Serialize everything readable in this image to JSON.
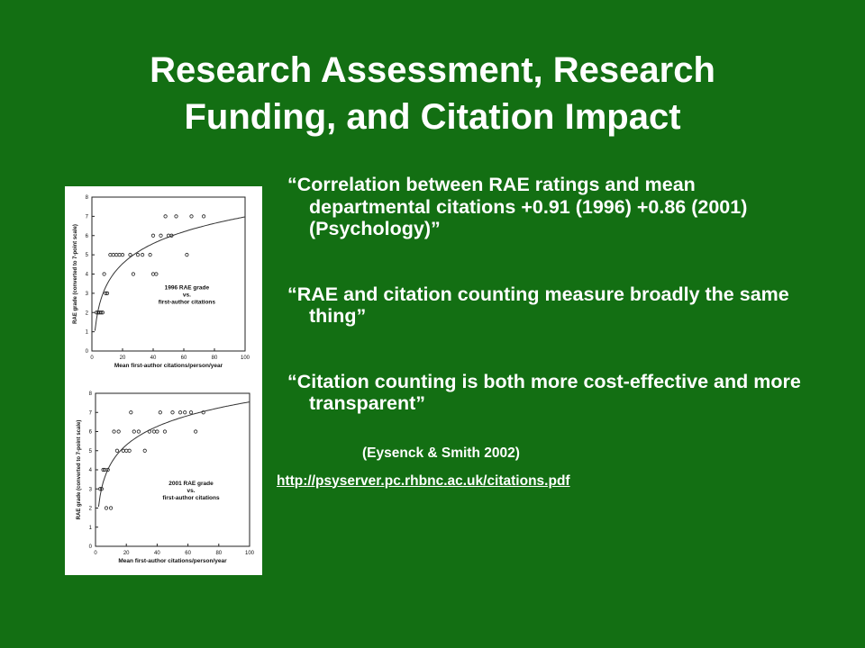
{
  "slide": {
    "title_line1": "Research Assessment, Research",
    "title_line2": "Funding, and Citation Impact",
    "bullets": [
      "“Correlation between RAE ratings and mean departmental citations +0.91 (1996) +0.86 (2001) (Psychology)”",
      "“RAE and citation counting measure broadly the same thing”",
      "“Citation counting is both more cost-effective and more transparent”"
    ],
    "citation": "(Eysenck & Smith 2002)",
    "link": "http://psyserver.pc.rhbnc.ac.uk/citations.pdf"
  },
  "colors": {
    "background": "#136f13",
    "text": "#ffffff",
    "figure_bg": "#ffffff"
  },
  "chart_data": [
    {
      "type": "scatter",
      "annotation": [
        "1996 RAE grade",
        "vs.",
        "first-author citations"
      ],
      "xlabel": "Mean first-author citations/person/year",
      "ylabel": "RAE grade (converted to 7-point scale)",
      "xlim": [
        0,
        100
      ],
      "ylim": [
        0,
        8
      ],
      "xticks": [
        0,
        20,
        40,
        60,
        80,
        100
      ],
      "yticks": [
        0,
        1,
        2,
        3,
        4,
        5,
        6,
        7,
        8
      ],
      "points": [
        [
          3,
          2
        ],
        [
          4,
          2
        ],
        [
          5,
          2
        ],
        [
          6,
          2
        ],
        [
          7,
          2
        ],
        [
          8,
          4
        ],
        [
          9,
          3
        ],
        [
          10,
          3
        ],
        [
          12,
          5
        ],
        [
          14,
          5
        ],
        [
          16,
          5
        ],
        [
          18,
          5
        ],
        [
          20,
          5
        ],
        [
          25,
          5
        ],
        [
          27,
          4
        ],
        [
          30,
          5
        ],
        [
          33,
          5
        ],
        [
          38,
          5
        ],
        [
          40,
          4
        ],
        [
          42,
          4
        ],
        [
          40,
          6
        ],
        [
          45,
          6
        ],
        [
          48,
          7
        ],
        [
          50,
          6
        ],
        [
          52,
          6
        ],
        [
          55,
          7
        ],
        [
          62,
          5
        ],
        [
          65,
          7
        ],
        [
          73,
          7
        ]
      ],
      "trend": "logarithmic"
    },
    {
      "type": "scatter",
      "annotation": [
        "2001 RAE grade",
        "vs.",
        "first-author citations"
      ],
      "xlabel": "Mean first-author citations/person/year",
      "ylabel": "RAE grade (converted to 7-point scale)",
      "xlim": [
        0,
        100
      ],
      "ylim": [
        0,
        8
      ],
      "xticks": [
        0,
        20,
        40,
        60,
        80,
        100
      ],
      "yticks": [
        0,
        1,
        2,
        3,
        4,
        5,
        6,
        7,
        8
      ],
      "points": [
        [
          3,
          3
        ],
        [
          4,
          3
        ],
        [
          5,
          4
        ],
        [
          6,
          4
        ],
        [
          7,
          2
        ],
        [
          8,
          4
        ],
        [
          10,
          2
        ],
        [
          12,
          6
        ],
        [
          14,
          5
        ],
        [
          15,
          6
        ],
        [
          18,
          5
        ],
        [
          20,
          5
        ],
        [
          22,
          5
        ],
        [
          23,
          7
        ],
        [
          25,
          6
        ],
        [
          28,
          6
        ],
        [
          32,
          5
        ],
        [
          35,
          6
        ],
        [
          38,
          6
        ],
        [
          40,
          6
        ],
        [
          42,
          7
        ],
        [
          45,
          6
        ],
        [
          50,
          7
        ],
        [
          55,
          7
        ],
        [
          58,
          7
        ],
        [
          62,
          7
        ],
        [
          65,
          6
        ],
        [
          70,
          7
        ]
      ],
      "trend": "logarithmic"
    }
  ]
}
